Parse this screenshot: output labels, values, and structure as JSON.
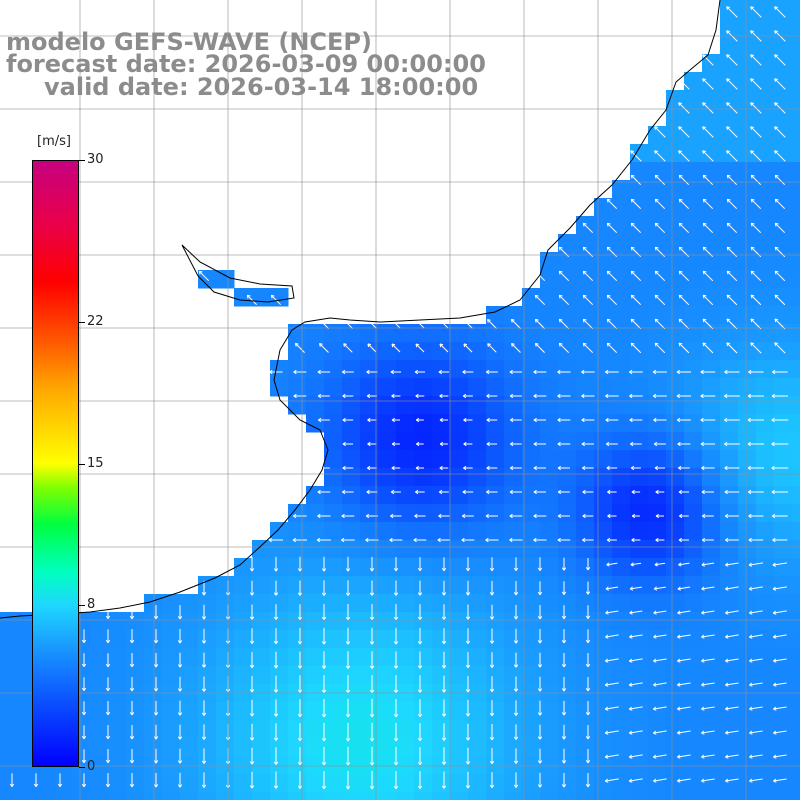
{
  "title": {
    "model": "modelo GEFS-WAVE (NCEP)",
    "forecast": "forecast date: 2026-03-09 00:00:00",
    "valid": "valid date: 2026-03-14 18:00:00"
  },
  "colorbar": {
    "units": "[m/s]",
    "range": [
      0,
      30
    ],
    "ticks": [
      {
        "value": 30,
        "label": "30"
      },
      {
        "value": 22,
        "label": "22"
      },
      {
        "value": 15,
        "label": "15"
      },
      {
        "value": 8,
        "label": "8"
      },
      {
        "value": 0,
        "label": "0"
      }
    ],
    "colors": [
      "#0000ff",
      "#1a9cff",
      "#1ed8ff",
      "#00ffc0",
      "#00ff40",
      "#ffff00",
      "#ff5a00",
      "#ff0000",
      "#c6007f"
    ]
  },
  "map": {
    "land_color": "#ffffff",
    "coastline_color": "#000000",
    "grid_color": "#909090",
    "arrow_color": "#ffffff"
  }
}
